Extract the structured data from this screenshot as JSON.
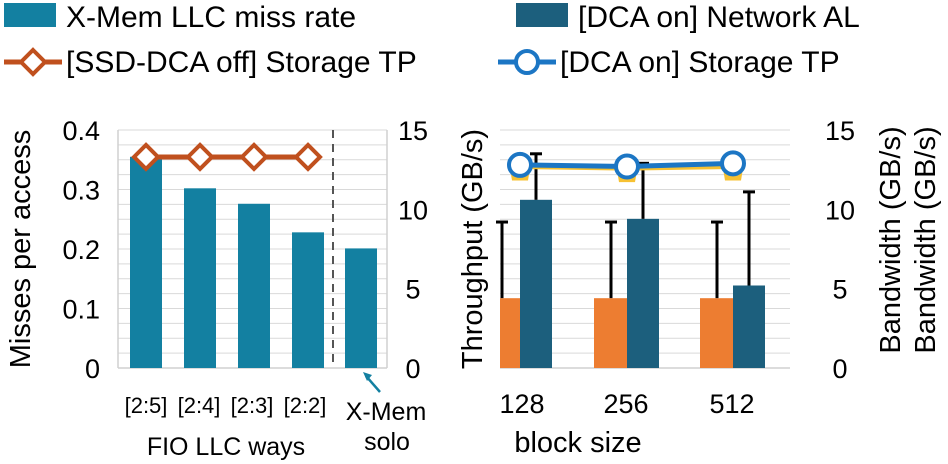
{
  "colors": {
    "llc_bar": "#1380a1",
    "network_bar": "#1c5f7d",
    "ssd_line": "#c0501e",
    "dca_line": "#1c76c4",
    "orange_bar": "#ed7d31",
    "yellow_line": "#f7c132",
    "grid": "#d9d9d9",
    "divider": "#555555",
    "arrow": "#1380a1"
  },
  "chart_data": [
    {
      "type": "bar",
      "panel": "left",
      "title": "",
      "legend": {
        "bar_series": "X-Mem LLC miss rate",
        "line_series": "[SSD-DCA off] Storage TP"
      },
      "categories": [
        "[2:5]",
        "[2:4]",
        "[2:3]",
        "[2:2]",
        "X-Mem solo"
      ],
      "xlabel": "FIO LLC ways",
      "ylabel": "Misses per access",
      "ylim": [
        0,
        0.4
      ],
      "yticks": [
        "0",
        "0.1",
        "0.2",
        "0.3",
        "0.4"
      ],
      "y2label": "Throughput (GB/s)",
      "y2lim": [
        0,
        15
      ],
      "y2ticks": [
        "0",
        "5",
        "10",
        "15"
      ],
      "series": [
        {
          "name": "X-Mem LLC miss rate",
          "kind": "bar",
          "axis": "left",
          "values": [
            0.355,
            0.302,
            0.276,
            0.228,
            0.201
          ]
        },
        {
          "name": "[SSD-DCA off] Storage TP",
          "kind": "line",
          "axis": "right",
          "marker": "diamond",
          "values": [
            13.3,
            13.3,
            13.3,
            13.3,
            null
          ]
        }
      ],
      "annotation": {
        "text_line1": "X-Mem",
        "text_line2": "solo"
      }
    },
    {
      "type": "bar",
      "panel": "right",
      "title": "",
      "legend": {
        "bar_series": "[DCA on] Network AL",
        "line_series": "[DCA on] Storage TP"
      },
      "categories": [
        "128",
        "256",
        "512"
      ],
      "xlabel": "block size",
      "ylabel": "Throughput (GB/s)",
      "ylim": [
        0,
        15
      ],
      "yticks": [
        "0",
        "5",
        "10",
        "15"
      ],
      "y2label": "Bandwidth (GB/s)",
      "y2label_repeat": "Bandwidth (GB/s)",
      "y2lim": [
        0,
        15
      ],
      "y2ticks": [
        "0",
        "5",
        "10",
        "15"
      ],
      "series": [
        {
          "name": "orange bar",
          "kind": "bar",
          "values": [
            4.4,
            4.4,
            4.4
          ],
          "error_top": [
            9.2,
            9.2,
            9.2
          ]
        },
        {
          "name": "[DCA on] Network AL",
          "kind": "bar",
          "values": [
            10.6,
            9.4,
            5.2
          ],
          "error_top": [
            13.5,
            12.9,
            11.1
          ]
        },
        {
          "name": "[DCA on] Storage TP",
          "kind": "line",
          "marker": "circle",
          "values": [
            12.8,
            12.7,
            12.9
          ]
        },
        {
          "name": "yellow line",
          "kind": "line",
          "values": [
            12.7,
            12.6,
            12.7
          ]
        }
      ]
    }
  ]
}
